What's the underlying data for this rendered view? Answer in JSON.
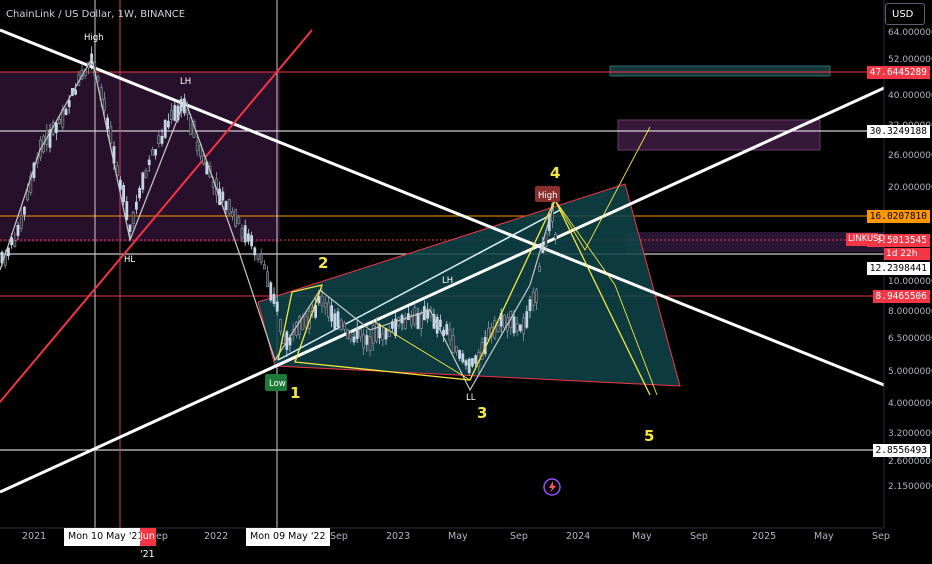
{
  "header": {
    "symbol_text": "ChainLink / US Dollar, 1W, BINANCE",
    "currency_button": "USD"
  },
  "price_scale": {
    "ticks": [
      "64.0000000",
      "52.0000000",
      "40.0000000",
      "32.0000000",
      "26.0000000",
      "20.0000000",
      "10.0000000",
      "8.0000000",
      "6.5000000",
      "5.0000000",
      "4.0000000",
      "3.2000000",
      "2.6000000",
      "2.1500000"
    ],
    "tags": [
      {
        "value": "47.6445289",
        "bg": "#f23645",
        "fg": "#ffffff"
      },
      {
        "value": "30.3249188",
        "bg": "#ffffff",
        "fg": "#000000"
      },
      {
        "value": "16.0207810",
        "bg": "#ff9800",
        "fg": "#000000"
      },
      {
        "value": "13.5013545",
        "bg": "#f23645",
        "fg": "#ffffff"
      },
      {
        "value": "12.2398441",
        "bg": "#ffffff",
        "fg": "#000000"
      },
      {
        "value": "8.9465506",
        "bg": "#f23645",
        "fg": "#ffffff"
      },
      {
        "value": "2.8556493",
        "bg": "#ffffff",
        "fg": "#000000"
      }
    ],
    "symbol_tag": "LINKUSD",
    "countdown": "1d 22h"
  },
  "time_axis": {
    "labels": [
      "2021",
      "Sep",
      "2022",
      "Sep",
      "2023",
      "May",
      "Sep",
      "2024",
      "May",
      "Sep",
      "2025",
      "May",
      "Sep"
    ],
    "crosshair_labels": [
      "Mon 10 May '21",
      "Mon 09 May '22"
    ],
    "partial_label": "Jun '21"
  },
  "annotations": {
    "high_top": "High",
    "lh_left": "LH",
    "hl": "HL",
    "low_badge": "Low",
    "lh_mid": "LH",
    "ll": "LL",
    "high_badge": "High",
    "wave": [
      "1",
      "2",
      "3",
      "4",
      "5"
    ]
  },
  "colors": {
    "background": "#000000",
    "bull": "#c7d7e8",
    "bear": "#8f9aa5",
    "trendline": "#ffffff",
    "red_line": "#f23645",
    "yellow": "#f5e642",
    "triangle_fill": "#0e4449",
    "purple_box": "#3a1a3a",
    "orange_line": "#ff9800"
  }
}
